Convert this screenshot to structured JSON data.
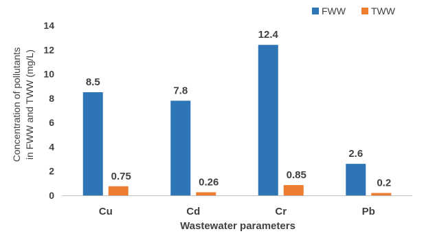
{
  "chart_data": {
    "type": "bar",
    "categories": [
      "Cu",
      "Cd",
      "Cr",
      "Pb"
    ],
    "series": [
      {
        "name": "FWW",
        "values": [
          8.5,
          7.8,
          12.4,
          2.6
        ],
        "labels": [
          "8.5",
          "7.8",
          "12.4",
          "2.6"
        ],
        "color": "#2e75b6"
      },
      {
        "name": "TWW",
        "values": [
          0.75,
          0.26,
          0.85,
          0.2
        ],
        "labels": [
          "0.75",
          "0.26",
          "0.85",
          "0.2"
        ],
        "color": "#ed7d31"
      }
    ],
    "xlabel": "Wastewater parameters",
    "ylabel_lines": [
      "Concentration of pollutants",
      "in FWW and TWW (mg/L)"
    ],
    "ylim": [
      0,
      14
    ],
    "yticks": [
      0,
      2,
      4,
      6,
      8,
      10,
      12,
      14
    ],
    "grid": false,
    "legend_position": "top-right"
  }
}
